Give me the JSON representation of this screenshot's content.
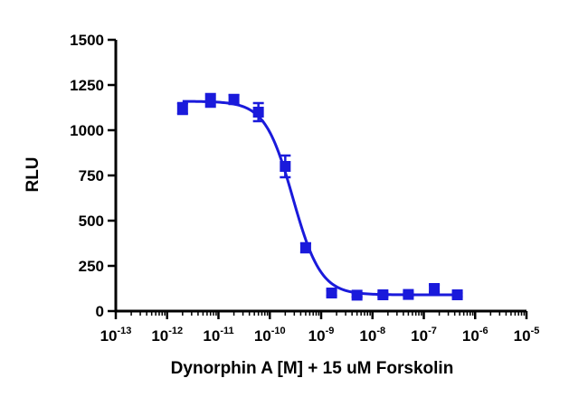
{
  "chart_data": {
    "type": "scatter",
    "title": "",
    "xlabel": "Dynorphin A [M] + 15 uM Forskolin",
    "ylabel": "RLU",
    "x_scale": "log",
    "xlim": [
      1e-13,
      1e-05
    ],
    "ylim": [
      0,
      1500
    ],
    "x_ticks": [
      {
        "base": "10",
        "exp": "-13"
      },
      {
        "base": "10",
        "exp": "-12"
      },
      {
        "base": "10",
        "exp": "-11"
      },
      {
        "base": "10",
        "exp": "-10"
      },
      {
        "base": "10",
        "exp": "-9"
      },
      {
        "base": "10",
        "exp": "-8"
      },
      {
        "base": "10",
        "exp": "-7"
      },
      {
        "base": "10",
        "exp": "-6"
      },
      {
        "base": "10",
        "exp": "-5"
      }
    ],
    "y_ticks": [
      "0",
      "250",
      "500",
      "750",
      "1000",
      "1250",
      "1500"
    ],
    "grid": false,
    "legend": "none",
    "color": "#1a1adb",
    "series": [
      {
        "points": [
          {
            "x": 2e-12,
            "y": 1120,
            "err": 30
          },
          {
            "x": 7e-12,
            "y": 1165,
            "err": 35
          },
          {
            "x": 2e-11,
            "y": 1170,
            "err": 25
          },
          {
            "x": 6e-11,
            "y": 1100,
            "err": 50
          },
          {
            "x": 2e-10,
            "y": 800,
            "err": 60
          },
          {
            "x": 5e-10,
            "y": 350,
            "err": 25
          },
          {
            "x": 1.6e-09,
            "y": 100,
            "err": 15
          },
          {
            "x": 5e-09,
            "y": 88,
            "err": 10
          },
          {
            "x": 1.6e-08,
            "y": 90,
            "err": 10
          },
          {
            "x": 5e-08,
            "y": 92,
            "err": 10
          },
          {
            "x": 1.6e-07,
            "y": 125,
            "err": 20
          },
          {
            "x": 4.5e-07,
            "y": 90,
            "err": 10
          }
        ],
        "fit": {
          "top": 1160,
          "bottom": 90,
          "log_ec50": -9.55,
          "hill": -1.6
        }
      }
    ]
  }
}
